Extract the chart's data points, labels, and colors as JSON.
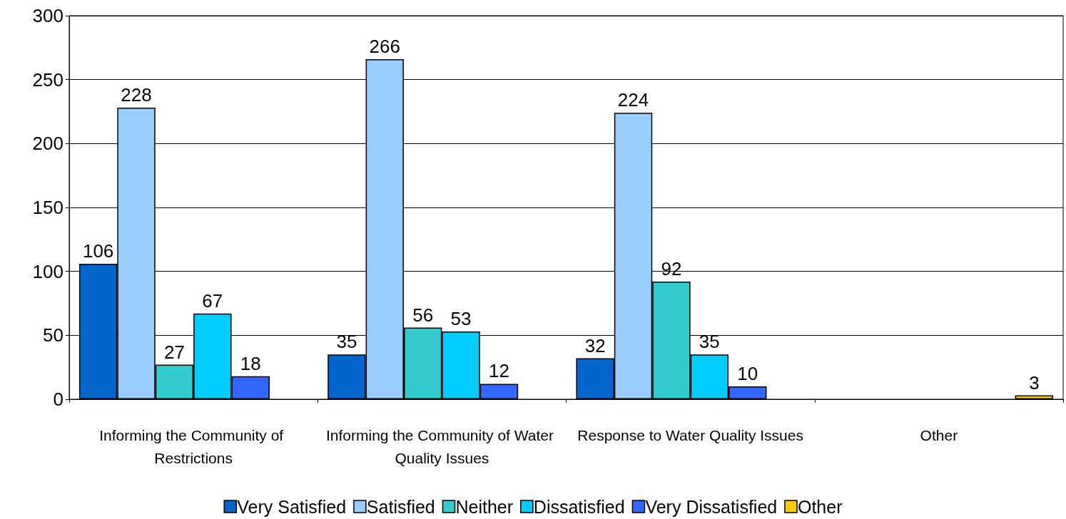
{
  "chart_data": {
    "type": "bar",
    "categories": [
      "Informing the Community of Restrictions",
      "Informing the Community of Water Quality Issues",
      "Response to Water Quality Issues",
      "Other"
    ],
    "series": [
      {
        "name": "Very Satisfied",
        "color": "#0066cc",
        "values": [
          106,
          35,
          32,
          null
        ]
      },
      {
        "name": "Satisfied",
        "color": "#99ccff",
        "values": [
          228,
          266,
          224,
          null
        ]
      },
      {
        "name": "Neither",
        "color": "#33cccc",
        "values": [
          27,
          56,
          92,
          null
        ]
      },
      {
        "name": "Dissatisfied",
        "color": "#00ccff",
        "values": [
          67,
          53,
          35,
          null
        ]
      },
      {
        "name": "Very Dissatisfied",
        "color": "#3366ff",
        "values": [
          18,
          12,
          10,
          null
        ]
      },
      {
        "name": "Other",
        "color": "#ffcc00",
        "values": [
          null,
          null,
          null,
          3
        ]
      }
    ],
    "ylim": [
      0,
      300
    ],
    "yticks": [
      0,
      50,
      100,
      150,
      200,
      250,
      300
    ],
    "grid": "y",
    "legend": "bottom",
    "data_labels": true
  }
}
